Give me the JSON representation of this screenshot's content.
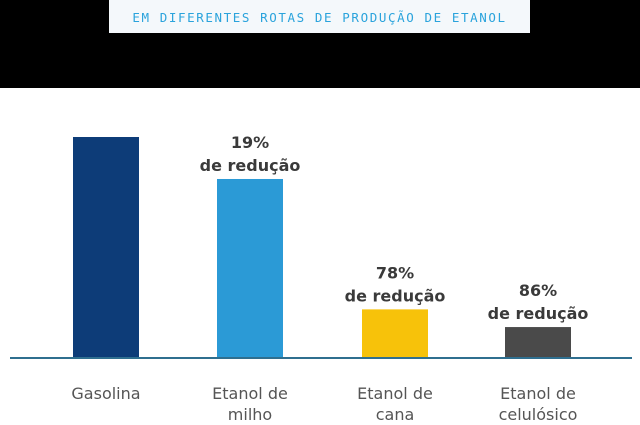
{
  "header": {
    "subtitle": "EM DIFERENTES ROTAS DE PRODUÇÃO DE ETANOL"
  },
  "chart_data": {
    "type": "bar",
    "categories": [
      [
        "Gasolina"
      ],
      [
        "Etanol de",
        "milho"
      ],
      [
        "Etanol de",
        "cana"
      ],
      [
        "Etanol de",
        "celulósico"
      ]
    ],
    "values": [
      100,
      81,
      22,
      14
    ],
    "colors": [
      "#0d3c78",
      "#2b9ad6",
      "#f7c20a",
      "#4a4a4a"
    ],
    "annotations": [
      null,
      {
        "pct": "19%",
        "text": "de redução"
      },
      {
        "pct": "78%",
        "text": "de redução"
      },
      {
        "pct": "86%",
        "text": "de redução"
      }
    ],
    "ylim": [
      0,
      100
    ],
    "axis_color": "#2f6f8f",
    "grid": false,
    "xlabel": "",
    "ylabel": ""
  }
}
